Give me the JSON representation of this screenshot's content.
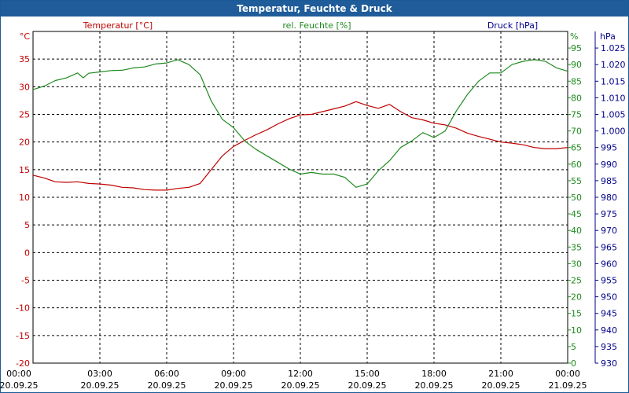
{
  "window": {
    "title": "Temperatur, Feuchte & Druck"
  },
  "colors": {
    "temp": "#c00000",
    "humidity": "#1f8a1f",
    "pressure": "#00008b",
    "title_bg": "#1f5c99",
    "grid": "#000000"
  },
  "chart_data": {
    "type": "line",
    "title": "Temperatur, Feuchte & Druck",
    "grid": true,
    "x": {
      "range": [
        "20.09.25 00:00",
        "21.09.25 00:00"
      ],
      "ticks": [
        {
          "time": "00:00",
          "date": "20.09.25"
        },
        {
          "time": "03:00",
          "date": "20.09.25"
        },
        {
          "time": "06:00",
          "date": "20.09.25"
        },
        {
          "time": "09:00",
          "date": "20.09.25"
        },
        {
          "time": "12:00",
          "date": "20.09.25"
        },
        {
          "time": "15:00",
          "date": "20.09.25"
        },
        {
          "time": "18:00",
          "date": "20.09.25"
        },
        {
          "time": "21:00",
          "date": "20.09.25"
        },
        {
          "time": "00:00",
          "date": "21.09.25"
        }
      ]
    },
    "axes": {
      "temp": {
        "label": "Temperatur [°C]",
        "unit": "°C",
        "range": [
          -20,
          40
        ],
        "ticks": [
          -20,
          -15,
          -10,
          -5,
          0,
          5,
          10,
          15,
          20,
          25,
          30,
          35
        ]
      },
      "humidity": {
        "label": "rel. Feuchte [%]",
        "unit": "%",
        "range": [
          0,
          100
        ],
        "ticks": [
          0,
          5,
          10,
          15,
          20,
          25,
          30,
          35,
          40,
          45,
          50,
          55,
          60,
          65,
          70,
          75,
          80,
          85,
          90,
          95
        ]
      },
      "pressure": {
        "label": "Druck [hPa]",
        "unit": "hPa",
        "range": [
          930,
          1030
        ],
        "ticks": [
          "930",
          "935",
          "940",
          "945",
          "950",
          "955",
          "960",
          "965",
          "970",
          "975",
          "980",
          "985",
          "990",
          "995",
          "1.000",
          "1.005",
          "1.010",
          "1.015",
          "1.020",
          "1.025"
        ]
      }
    },
    "series": [
      {
        "name": "Temperatur [°C]",
        "axis": "temp",
        "points": [
          [
            "20.09.25 00:00",
            14.0
          ],
          [
            "20.09.25 00:30",
            13.5
          ],
          [
            "20.09.25 01:00",
            12.8
          ],
          [
            "20.09.25 01:30",
            12.7
          ],
          [
            "20.09.25 02:00",
            12.8
          ],
          [
            "20.09.25 02:30",
            12.5
          ],
          [
            "20.09.25 03:00",
            12.4
          ],
          [
            "20.09.25 03:30",
            12.2
          ],
          [
            "20.09.25 04:00",
            11.8
          ],
          [
            "20.09.25 04:30",
            11.7
          ],
          [
            "20.09.25 05:00",
            11.4
          ],
          [
            "20.09.25 05:30",
            11.3
          ],
          [
            "20.09.25 06:00",
            11.3
          ],
          [
            "20.09.25 06:30",
            11.6
          ],
          [
            "20.09.25 07:00",
            11.8
          ],
          [
            "20.09.25 07:30",
            12.5
          ],
          [
            "20.09.25 08:00",
            15.0
          ],
          [
            "20.09.25 08:30",
            17.5
          ],
          [
            "20.09.25 09:00",
            19.2
          ],
          [
            "20.09.25 09:30",
            20.3
          ],
          [
            "20.09.25 10:00",
            21.3
          ],
          [
            "20.09.25 10:30",
            22.2
          ],
          [
            "20.09.25 11:00",
            23.3
          ],
          [
            "20.09.25 11:30",
            24.2
          ],
          [
            "20.09.25 12:00",
            24.9
          ],
          [
            "20.09.25 12:30",
            25.0
          ],
          [
            "20.09.25 13:00",
            25.5
          ],
          [
            "20.09.25 13:30",
            26.0
          ],
          [
            "20.09.25 14:00",
            26.5
          ],
          [
            "20.09.25 14:30",
            27.3
          ],
          [
            "20.09.25 15:00",
            26.6
          ],
          [
            "20.09.25 15:30",
            26.1
          ],
          [
            "20.09.25 16:00",
            26.8
          ],
          [
            "20.09.25 16:30",
            25.5
          ],
          [
            "20.09.25 17:00",
            24.4
          ],
          [
            "20.09.25 17:30",
            24.0
          ],
          [
            "20.09.25 18:00",
            23.4
          ],
          [
            "20.09.25 18:30",
            23.1
          ],
          [
            "20.09.25 19:00",
            22.5
          ],
          [
            "20.09.25 19:30",
            21.6
          ],
          [
            "20.09.25 20:00",
            21.0
          ],
          [
            "20.09.25 20:30",
            20.5
          ],
          [
            "20.09.25 21:00",
            20.0
          ],
          [
            "20.09.25 21:30",
            19.8
          ],
          [
            "20.09.25 22:00",
            19.5
          ],
          [
            "20.09.25 22:30",
            19.0
          ],
          [
            "20.09.25 23:00",
            18.8
          ],
          [
            "20.09.25 23:30",
            18.8
          ],
          [
            "21.09.25 00:00",
            19.0
          ]
        ]
      },
      {
        "name": "rel. Feuchte [%]",
        "axis": "humidity",
        "points": [
          [
            "20.09.25 00:00",
            82.5
          ],
          [
            "20.09.25 00:30",
            83.5
          ],
          [
            "20.09.25 01:00",
            85.2
          ],
          [
            "20.09.25 01:30",
            86.0
          ],
          [
            "20.09.25 02:00",
            87.5
          ],
          [
            "20.09.25 02:15",
            86.0
          ],
          [
            "20.09.25 02:30",
            87.4
          ],
          [
            "20.09.25 03:00",
            87.8
          ],
          [
            "20.09.25 03:30",
            88.2
          ],
          [
            "20.09.25 04:00",
            88.3
          ],
          [
            "20.09.25 04:30",
            89.0
          ],
          [
            "20.09.25 05:00",
            89.3
          ],
          [
            "20.09.25 05:30",
            90.2
          ],
          [
            "20.09.25 06:00",
            90.5
          ],
          [
            "20.09.25 06:30",
            91.5
          ],
          [
            "20.09.25 07:00",
            90.0
          ],
          [
            "20.09.25 07:30",
            87.0
          ],
          [
            "20.09.25 08:00",
            79.0
          ],
          [
            "20.09.25 08:30",
            73.5
          ],
          [
            "20.09.25 09:00",
            71.0
          ],
          [
            "20.09.25 09:30",
            67.0
          ],
          [
            "20.09.25 10:00",
            64.5
          ],
          [
            "20.09.25 10:30",
            62.5
          ],
          [
            "20.09.25 11:00",
            60.5
          ],
          [
            "20.09.25 11:30",
            58.5
          ],
          [
            "20.09.25 12:00",
            57.0
          ],
          [
            "20.09.25 12:30",
            57.5
          ],
          [
            "20.09.25 13:00",
            57.0
          ],
          [
            "20.09.25 13:30",
            57.0
          ],
          [
            "20.09.25 14:00",
            56.0
          ],
          [
            "20.09.25 14:30",
            53.0
          ],
          [
            "20.09.25 15:00",
            54.0
          ],
          [
            "20.09.25 15:30",
            58.0
          ],
          [
            "20.09.25 16:00",
            61.0
          ],
          [
            "20.09.25 16:30",
            65.0
          ],
          [
            "20.09.25 17:00",
            67.0
          ],
          [
            "20.09.25 17:30",
            69.5
          ],
          [
            "20.09.25 18:00",
            68.0
          ],
          [
            "20.09.25 18:30",
            70.0
          ],
          [
            "20.09.25 19:00",
            76.0
          ],
          [
            "20.09.25 19:30",
            81.0
          ],
          [
            "20.09.25 20:00",
            85.0
          ],
          [
            "20.09.25 20:30",
            87.5
          ],
          [
            "20.09.25 21:00",
            87.5
          ],
          [
            "20.09.25 21:30",
            90.0
          ],
          [
            "20.09.25 22:00",
            91.0
          ],
          [
            "20.09.25 22:30",
            91.5
          ],
          [
            "20.09.25 23:00",
            91.0
          ],
          [
            "20.09.25 23:30",
            89.0
          ],
          [
            "21.09.25 00:00",
            88.0
          ]
        ]
      },
      {
        "name": "Druck [hPa]",
        "axis": "pressure",
        "points": []
      }
    ]
  }
}
